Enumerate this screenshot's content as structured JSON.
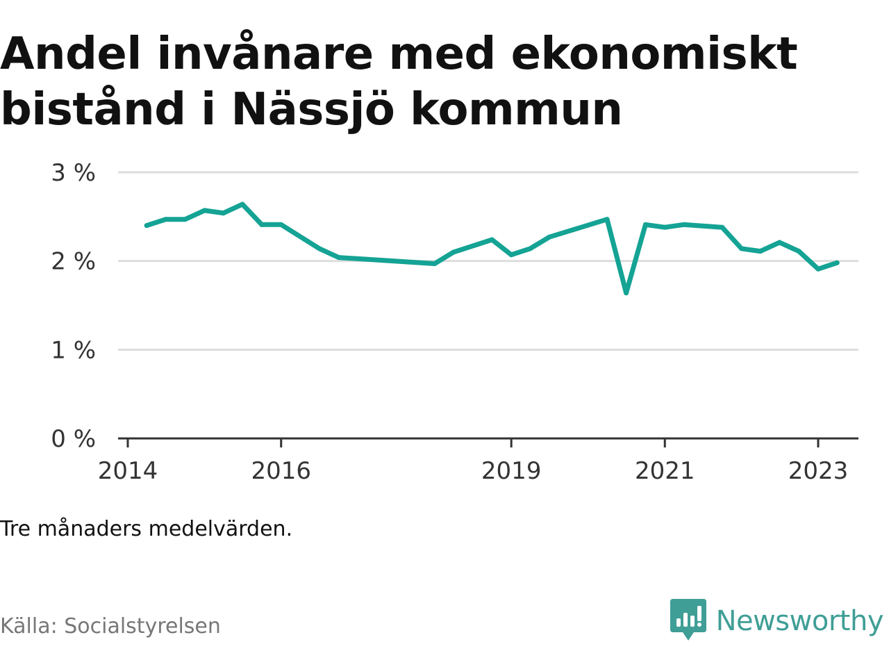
{
  "title": "Andel invånare med ekonomiskt bistånd i Nässjö kommun",
  "note": "Tre månaders medelvärden.",
  "source": "Källa: Socialstyrelsen",
  "brand": {
    "name": "Newsworthy",
    "icon": "bar-chart-badge-icon",
    "color": "#3f9e96"
  },
  "chart_data": {
    "type": "line",
    "title": "Andel invånare med ekonomiskt bistånd i Nässjö kommun",
    "xlabel": "",
    "ylabel": "",
    "grid": true,
    "line_color": "#14a394",
    "x_ticks": [
      "2014",
      "2016",
      "2019",
      "2021",
      "2023"
    ],
    "y_ticks": [
      "0 %",
      "1 %",
      "2 %",
      "3 %"
    ],
    "ylim": [
      0,
      3
    ],
    "xlim": [
      "2014-01-01",
      "2023-09-01"
    ],
    "series": [
      {
        "points": [
          {
            "x": "2014-04-01",
            "y": 2.4
          },
          {
            "x": "2014-07-01",
            "y": 2.47
          },
          {
            "x": "2014-10-01",
            "y": 2.47
          },
          {
            "x": "2015-01-01",
            "y": 2.57
          },
          {
            "x": "2015-04-01",
            "y": 2.54
          },
          {
            "x": "2015-07-01",
            "y": 2.64
          },
          {
            "x": "2015-10-01",
            "y": 2.41
          },
          {
            "x": "2016-01-01",
            "y": 2.41
          },
          {
            "x": "2016-07-01",
            "y": 2.14
          },
          {
            "x": "2016-10-01",
            "y": 2.04
          },
          {
            "x": "2018-01-01",
            "y": 1.97
          },
          {
            "x": "2018-04-01",
            "y": 2.1
          },
          {
            "x": "2018-10-01",
            "y": 2.24
          },
          {
            "x": "2019-01-01",
            "y": 2.07
          },
          {
            "x": "2019-04-01",
            "y": 2.14
          },
          {
            "x": "2019-07-01",
            "y": 2.27
          },
          {
            "x": "2020-04-01",
            "y": 2.47
          },
          {
            "x": "2020-07-01",
            "y": 1.64
          },
          {
            "x": "2020-10-01",
            "y": 2.41
          },
          {
            "x": "2021-01-01",
            "y": 2.38
          },
          {
            "x": "2021-04-01",
            "y": 2.41
          },
          {
            "x": "2021-10-01",
            "y": 2.38
          },
          {
            "x": "2022-01-01",
            "y": 2.14
          },
          {
            "x": "2022-04-01",
            "y": 2.11
          },
          {
            "x": "2022-07-01",
            "y": 2.21
          },
          {
            "x": "2022-10-01",
            "y": 2.11
          },
          {
            "x": "2023-01-01",
            "y": 1.91
          },
          {
            "x": "2023-04-01",
            "y": 1.98
          }
        ]
      }
    ]
  }
}
